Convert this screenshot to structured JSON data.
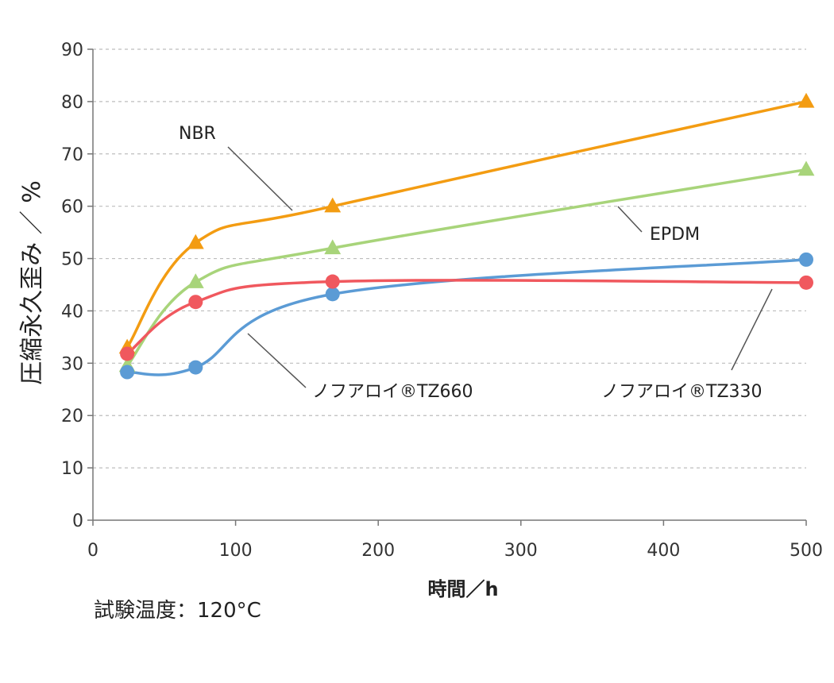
{
  "chart_data": {
    "type": "line",
    "title": "",
    "xlabel": "時間／h",
    "ylabel": "圧縮永久歪み ／ %",
    "xlim": [
      0,
      500
    ],
    "ylim": [
      0,
      90
    ],
    "x_ticks": [
      "0",
      "100",
      "200",
      "300",
      "400",
      "500"
    ],
    "y_ticks": [
      "0",
      "10",
      "20",
      "30",
      "40",
      "50",
      "60",
      "70",
      "80",
      "90"
    ],
    "grid": "horizontal-dashed",
    "series": [
      {
        "name": "NBR",
        "marker": "triangle",
        "color": "#F39C12",
        "x": [
          24,
          72,
          168,
          500
        ],
        "y": [
          33,
          53,
          60,
          80
        ]
      },
      {
        "name": "EPDM",
        "marker": "triangle",
        "color": "#A8D47A",
        "x": [
          24,
          72,
          168,
          500
        ],
        "y": [
          29.5,
          45.5,
          52,
          67
        ]
      },
      {
        "name": "ノフアロイ®TZ660",
        "marker": "circle",
        "color": "#5B9BD5",
        "x": [
          24,
          72,
          168,
          500
        ],
        "y": [
          28.3,
          29.2,
          43.2,
          49.8
        ]
      },
      {
        "name": "ノフアロイ®TZ330",
        "marker": "circle",
        "color": "#F0585E",
        "x": [
          24,
          72,
          168,
          500
        ],
        "y": [
          31.8,
          41.7,
          45.6,
          45.4
        ]
      }
    ],
    "note": "試験温度：120°C"
  }
}
